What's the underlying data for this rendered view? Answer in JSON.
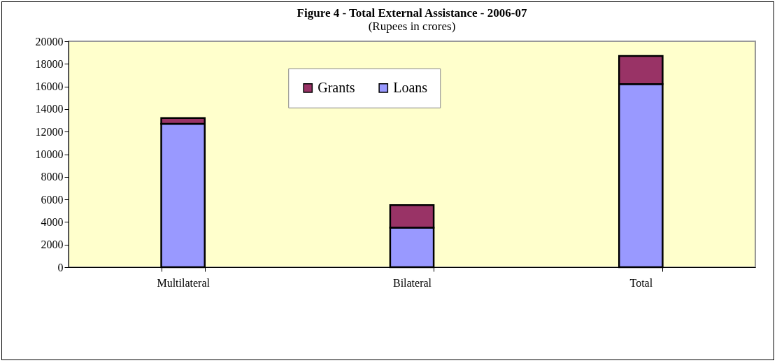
{
  "chart_data": {
    "type": "bar",
    "title": "Figure 4 - Total External Assistance - 2006-07",
    "subtitle": "(Rupees in crores)",
    "categories": [
      "Multilateral",
      "Bilateral",
      "Total"
    ],
    "series": [
      {
        "name": "Loans",
        "color": "#9999ff",
        "values": [
          12700,
          3500,
          16200
        ]
      },
      {
        "name": "Grants",
        "color": "#993366",
        "values": [
          500,
          2000,
          2500
        ]
      }
    ],
    "stacked": true,
    "ylim": [
      0,
      20000
    ],
    "yticks": [
      0,
      2000,
      4000,
      6000,
      8000,
      10000,
      12000,
      14000,
      16000,
      18000,
      20000
    ],
    "grid": false,
    "legend": "top"
  }
}
